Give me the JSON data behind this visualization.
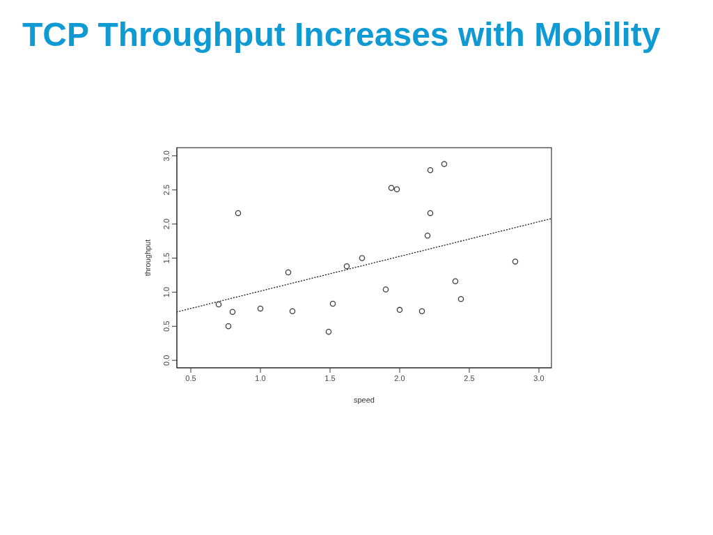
{
  "chart_data": {
    "type": "scatter",
    "title": "TCP Throughput Increases with Mobility",
    "xlabel": "speed",
    "ylabel": "throughput",
    "xlim": [
      0.4,
      3.09
    ],
    "ylim": [
      -0.11,
      3.12
    ],
    "xticks": [
      0.5,
      {
        "value": 1,
        "label": "1.0"
      },
      1.5,
      {
        "value": 2,
        "label": "2.0"
      },
      2.5,
      {
        "value": 3,
        "label": "3.0"
      }
    ],
    "yticks": [
      {
        "value": 0,
        "label": "0.0"
      },
      0.5,
      {
        "value": 1,
        "label": "1.0"
      },
      1.5,
      {
        "value": 2,
        "label": "2.0"
      },
      2.5,
      {
        "value": 3,
        "label": "3.0"
      }
    ],
    "series": [
      {
        "color": "#3a3a3a",
        "marker": "circle",
        "x": [
          0.7,
          0.77,
          0.8,
          0.84,
          1.0,
          1.2,
          1.23,
          1.49,
          1.52,
          1.62,
          1.73,
          1.9,
          1.94,
          1.98,
          2.0,
          2.16,
          2.2,
          2.22,
          2.22,
          2.32,
          2.4,
          2.44,
          2.83
        ],
        "values": [
          0.82,
          0.5,
          0.71,
          2.16,
          0.76,
          1.29,
          0.72,
          0.42,
          0.83,
          1.38,
          1.5,
          1.04,
          2.53,
          2.51,
          0.74,
          0.72,
          1.83,
          2.79,
          2.16,
          2.88,
          1.16,
          0.9,
          1.45
        ]
      },
      {
        "type": "line",
        "color": "#111111",
        "line_style": "dotted",
        "x": [
          0.4,
          3.09
        ],
        "values": [
          0.71,
          2.08
        ]
      }
    ]
  }
}
